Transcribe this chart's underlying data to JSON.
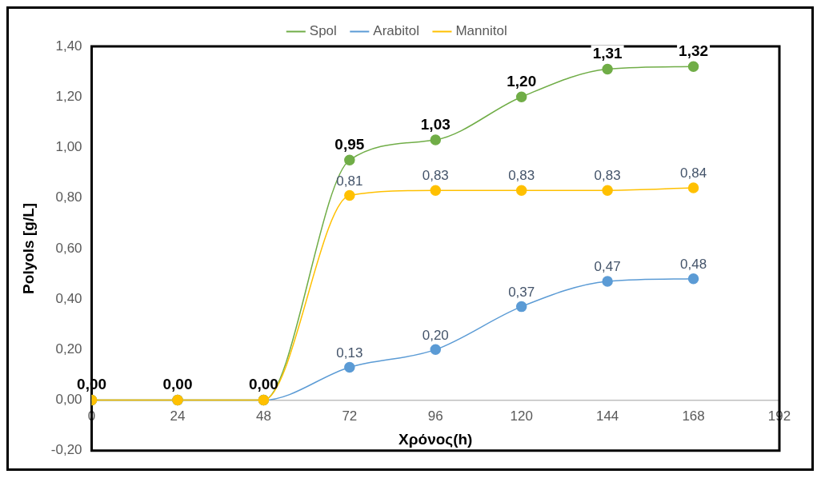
{
  "chart_data": {
    "type": "line",
    "xlabel": "Χρόνος(h)",
    "ylabel": "Polyols [g/L]",
    "x": [
      0,
      24,
      48,
      72,
      96,
      120,
      144,
      168
    ],
    "xlim": [
      0,
      192
    ],
    "xticks": [
      0,
      24,
      48,
      72,
      96,
      120,
      144,
      168,
      192
    ],
    "ylim": [
      -0.2,
      1.4
    ],
    "yticks": [
      {
        "value": -0.2,
        "label": "-0,20"
      },
      {
        "value": 0,
        "label": "0,00"
      },
      {
        "value": 0.2,
        "label": "0,20"
      },
      {
        "value": 0.4,
        "label": "0,40"
      },
      {
        "value": 0.6,
        "label": "0,60"
      },
      {
        "value": 0.8,
        "label": "0,80"
      },
      {
        "value": 1.0,
        "label": "1,00"
      },
      {
        "value": 1.2,
        "label": "1,20"
      },
      {
        "value": 1.4,
        "label": "1,40"
      }
    ],
    "series": [
      {
        "name": "Spol",
        "color": "#70ad47",
        "values": [
          0,
          0,
          0,
          0.95,
          1.03,
          1.2,
          1.31,
          1.32
        ],
        "value_labels": [
          "0,00",
          "0,00",
          "0,00",
          "0,95",
          "1,03",
          "1,20",
          "1,31",
          "1,32"
        ]
      },
      {
        "name": "Arabitol",
        "color": "#5b9bd5",
        "values": [
          0,
          0,
          0,
          0.13,
          0.2,
          0.37,
          0.47,
          0.48
        ],
        "value_labels": [
          null,
          null,
          null,
          "0,13",
          "0,20",
          "0,37",
          "0,47",
          "0,48"
        ]
      },
      {
        "name": "Mannitol",
        "color": "#ffc000",
        "values": [
          0,
          0,
          0,
          0.81,
          0.83,
          0.83,
          0.83,
          0.84
        ],
        "value_labels": [
          null,
          null,
          null,
          "0,81",
          "0,83",
          "0,83",
          "0,83",
          "0,84"
        ]
      }
    ],
    "grid": false,
    "legend": "top",
    "marker": "circle",
    "line_style": "solid"
  }
}
